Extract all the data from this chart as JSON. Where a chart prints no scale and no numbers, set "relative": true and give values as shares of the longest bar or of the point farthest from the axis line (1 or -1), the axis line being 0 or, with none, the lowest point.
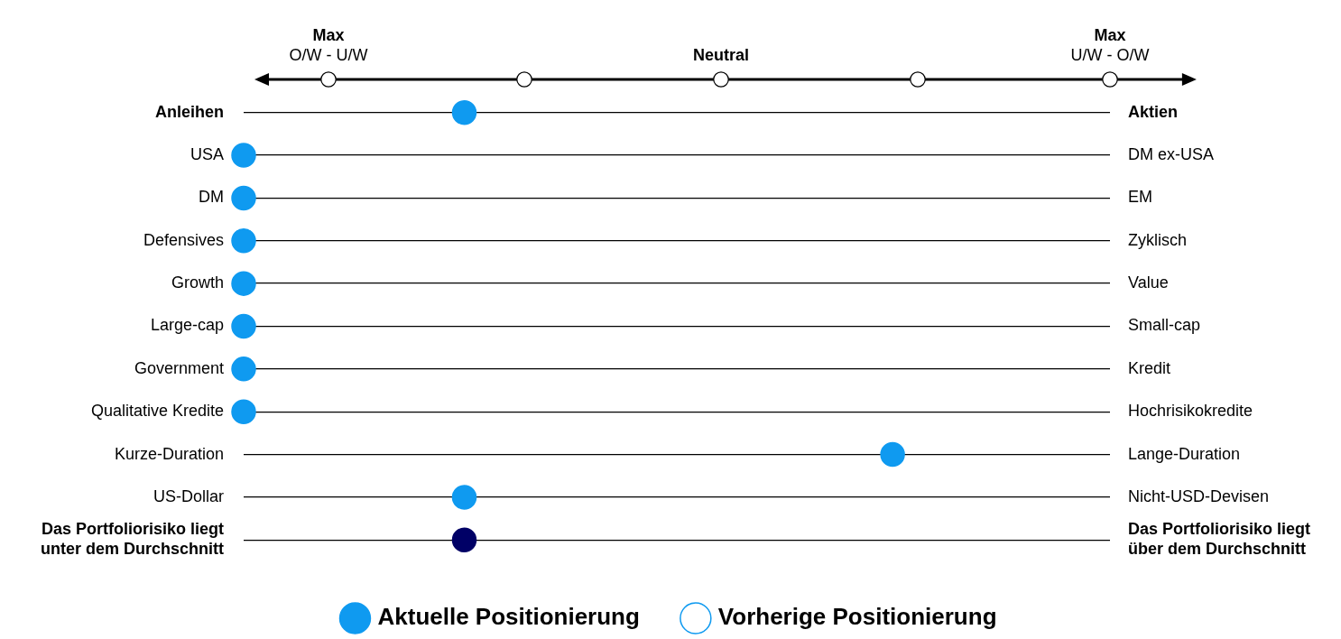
{
  "chart_data": {
    "type": "scatter",
    "orientation": "horizontal",
    "relative": true,
    "categories": [
      "Anleihen",
      "USA",
      "DM",
      "Defensives",
      "Growth",
      "Large-cap",
      "Government",
      "Qualitative Kredite",
      "Kurze-Duration",
      "US-Dollar",
      "Das Portfoliorisiko liegt\nunter dem Durchschnitt"
    ],
    "y2_categories": [
      "Aktien",
      "DM ex-USA",
      "EM",
      "Zyklisch",
      "Value",
      "Small-cap",
      "Kredit",
      "Hochrisikokredite",
      "Lange-Duration",
      "Nicht-USD-Devisen",
      "Das Portfoliorisiko liegt\nüber dem Durchschnitt"
    ],
    "series": [
      {
        "name": "Aktuelle Positionierung",
        "color": "#0f9af0",
        "colors": [
          "#0f9af0",
          "#0f9af0",
          "#0f9af0",
          "#0f9af0",
          "#0f9af0",
          "#0f9af0",
          "#0f9af0",
          "#0f9af0",
          "#0f9af0",
          "#0f9af0",
          "#000066"
        ],
        "values": [
          0.34,
          0,
          0,
          0,
          0,
          0,
          0,
          0,
          1,
          0.34,
          0.34
        ]
      },
      {
        "name": "Vorherige Positionierung",
        "color": "#ffffff",
        "values": [
          null,
          null,
          null,
          null,
          null,
          null,
          null,
          null,
          null,
          null,
          null
        ]
      }
    ],
    "annotations": [
      "Max\nO/W - U/W",
      "Neutral",
      "Max\nU/W - O/W"
    ],
    "grid": "y",
    "legend": "bottom",
    "marker": "circle"
  }
}
